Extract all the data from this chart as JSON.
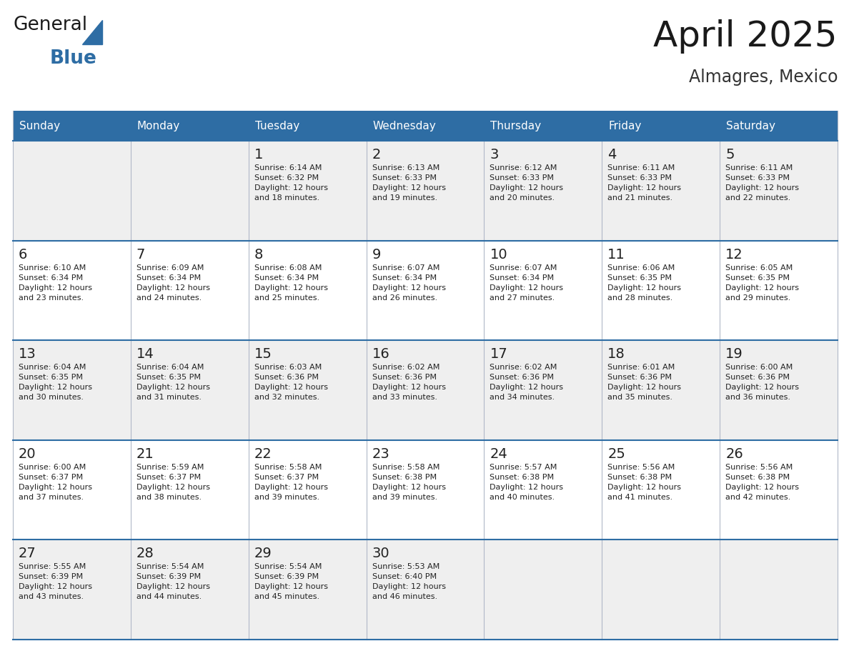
{
  "title": "April 2025",
  "subtitle": "Almagres, Mexico",
  "header_bg_color": "#2E6DA4",
  "header_text_color": "#FFFFFF",
  "cell_bg_even": "#EFEFEF",
  "cell_bg_odd": "#FFFFFF",
  "title_color": "#1a1a1a",
  "subtitle_color": "#333333",
  "day_names": [
    "Sunday",
    "Monday",
    "Tuesday",
    "Wednesday",
    "Thursday",
    "Friday",
    "Saturday"
  ],
  "general_text_color": "#222222",
  "line_color": "#2E6DA4",
  "border_color": "#B0B8C8",
  "logo_text_general": "General",
  "logo_text_blue": "Blue",
  "logo_color_general": "#1a1a1a",
  "logo_color_blue": "#2E6DA4",
  "logo_triangle_color": "#2E6DA4",
  "calendar": [
    [
      {
        "day": "",
        "info": ""
      },
      {
        "day": "",
        "info": ""
      },
      {
        "day": "1",
        "info": "Sunrise: 6:14 AM\nSunset: 6:32 PM\nDaylight: 12 hours\nand 18 minutes."
      },
      {
        "day": "2",
        "info": "Sunrise: 6:13 AM\nSunset: 6:33 PM\nDaylight: 12 hours\nand 19 minutes."
      },
      {
        "day": "3",
        "info": "Sunrise: 6:12 AM\nSunset: 6:33 PM\nDaylight: 12 hours\nand 20 minutes."
      },
      {
        "day": "4",
        "info": "Sunrise: 6:11 AM\nSunset: 6:33 PM\nDaylight: 12 hours\nand 21 minutes."
      },
      {
        "day": "5",
        "info": "Sunrise: 6:11 AM\nSunset: 6:33 PM\nDaylight: 12 hours\nand 22 minutes."
      }
    ],
    [
      {
        "day": "6",
        "info": "Sunrise: 6:10 AM\nSunset: 6:34 PM\nDaylight: 12 hours\nand 23 minutes."
      },
      {
        "day": "7",
        "info": "Sunrise: 6:09 AM\nSunset: 6:34 PM\nDaylight: 12 hours\nand 24 minutes."
      },
      {
        "day": "8",
        "info": "Sunrise: 6:08 AM\nSunset: 6:34 PM\nDaylight: 12 hours\nand 25 minutes."
      },
      {
        "day": "9",
        "info": "Sunrise: 6:07 AM\nSunset: 6:34 PM\nDaylight: 12 hours\nand 26 minutes."
      },
      {
        "day": "10",
        "info": "Sunrise: 6:07 AM\nSunset: 6:34 PM\nDaylight: 12 hours\nand 27 minutes."
      },
      {
        "day": "11",
        "info": "Sunrise: 6:06 AM\nSunset: 6:35 PM\nDaylight: 12 hours\nand 28 minutes."
      },
      {
        "day": "12",
        "info": "Sunrise: 6:05 AM\nSunset: 6:35 PM\nDaylight: 12 hours\nand 29 minutes."
      }
    ],
    [
      {
        "day": "13",
        "info": "Sunrise: 6:04 AM\nSunset: 6:35 PM\nDaylight: 12 hours\nand 30 minutes."
      },
      {
        "day": "14",
        "info": "Sunrise: 6:04 AM\nSunset: 6:35 PM\nDaylight: 12 hours\nand 31 minutes."
      },
      {
        "day": "15",
        "info": "Sunrise: 6:03 AM\nSunset: 6:36 PM\nDaylight: 12 hours\nand 32 minutes."
      },
      {
        "day": "16",
        "info": "Sunrise: 6:02 AM\nSunset: 6:36 PM\nDaylight: 12 hours\nand 33 minutes."
      },
      {
        "day": "17",
        "info": "Sunrise: 6:02 AM\nSunset: 6:36 PM\nDaylight: 12 hours\nand 34 minutes."
      },
      {
        "day": "18",
        "info": "Sunrise: 6:01 AM\nSunset: 6:36 PM\nDaylight: 12 hours\nand 35 minutes."
      },
      {
        "day": "19",
        "info": "Sunrise: 6:00 AM\nSunset: 6:36 PM\nDaylight: 12 hours\nand 36 minutes."
      }
    ],
    [
      {
        "day": "20",
        "info": "Sunrise: 6:00 AM\nSunset: 6:37 PM\nDaylight: 12 hours\nand 37 minutes."
      },
      {
        "day": "21",
        "info": "Sunrise: 5:59 AM\nSunset: 6:37 PM\nDaylight: 12 hours\nand 38 minutes."
      },
      {
        "day": "22",
        "info": "Sunrise: 5:58 AM\nSunset: 6:37 PM\nDaylight: 12 hours\nand 39 minutes."
      },
      {
        "day": "23",
        "info": "Sunrise: 5:58 AM\nSunset: 6:38 PM\nDaylight: 12 hours\nand 39 minutes."
      },
      {
        "day": "24",
        "info": "Sunrise: 5:57 AM\nSunset: 6:38 PM\nDaylight: 12 hours\nand 40 minutes."
      },
      {
        "day": "25",
        "info": "Sunrise: 5:56 AM\nSunset: 6:38 PM\nDaylight: 12 hours\nand 41 minutes."
      },
      {
        "day": "26",
        "info": "Sunrise: 5:56 AM\nSunset: 6:38 PM\nDaylight: 12 hours\nand 42 minutes."
      }
    ],
    [
      {
        "day": "27",
        "info": "Sunrise: 5:55 AM\nSunset: 6:39 PM\nDaylight: 12 hours\nand 43 minutes."
      },
      {
        "day": "28",
        "info": "Sunrise: 5:54 AM\nSunset: 6:39 PM\nDaylight: 12 hours\nand 44 minutes."
      },
      {
        "day": "29",
        "info": "Sunrise: 5:54 AM\nSunset: 6:39 PM\nDaylight: 12 hours\nand 45 minutes."
      },
      {
        "day": "30",
        "info": "Sunrise: 5:53 AM\nSunset: 6:40 PM\nDaylight: 12 hours\nand 46 minutes."
      },
      {
        "day": "",
        "info": ""
      },
      {
        "day": "",
        "info": ""
      },
      {
        "day": "",
        "info": ""
      }
    ]
  ]
}
